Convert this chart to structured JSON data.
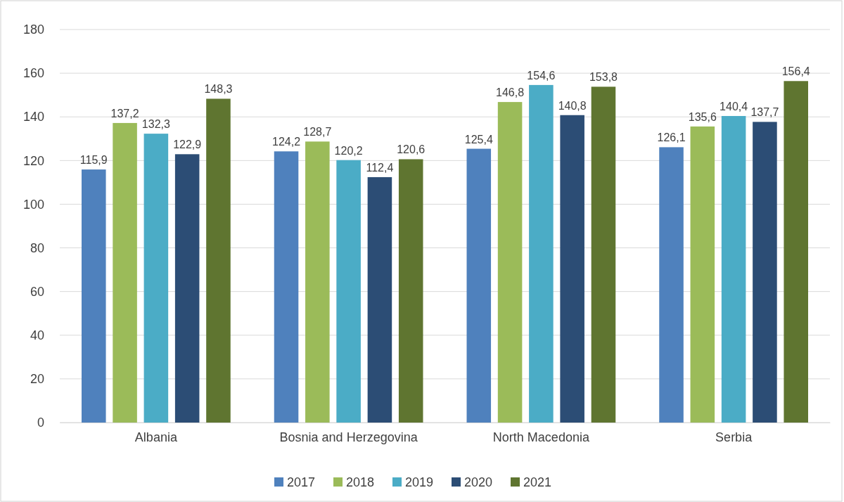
{
  "chart_data": {
    "type": "bar",
    "categories": [
      "Albania",
      "Bosnia and Herzegovina",
      "North Macedonia",
      "Serbia"
    ],
    "series": [
      {
        "name": "2017",
        "color": "#4f81bd",
        "values": [
          115.9,
          124.2,
          125.4,
          126.1
        ],
        "value_labels": [
          "115,9",
          "124,2",
          "125,4",
          "126,1"
        ]
      },
      {
        "name": "2018",
        "color": "#9bbb59",
        "values": [
          137.2,
          128.7,
          146.8,
          135.6
        ],
        "value_labels": [
          "137,2",
          "128,7",
          "146,8",
          "135,6"
        ]
      },
      {
        "name": "2019",
        "color": "#4bacc6",
        "values": [
          132.3,
          120.2,
          154.6,
          140.4
        ],
        "value_labels": [
          "132,3",
          "120,2",
          "154,6",
          "140,4"
        ]
      },
      {
        "name": "2020",
        "color": "#2c4d75",
        "values": [
          122.9,
          112.4,
          140.8,
          137.7
        ],
        "value_labels": [
          "122,9",
          "112,4",
          "140,8",
          "137,7"
        ]
      },
      {
        "name": "2021",
        "color": "#5f7530",
        "values": [
          148.3,
          120.6,
          153.8,
          156.4
        ],
        "value_labels": [
          "148,3",
          "120,6",
          "153,8",
          "156,4"
        ]
      }
    ],
    "ylim": [
      0,
      180
    ],
    "yticks": [
      0,
      20,
      40,
      60,
      80,
      100,
      120,
      140,
      160,
      180
    ],
    "grid": "y",
    "legend": "bottom"
  }
}
